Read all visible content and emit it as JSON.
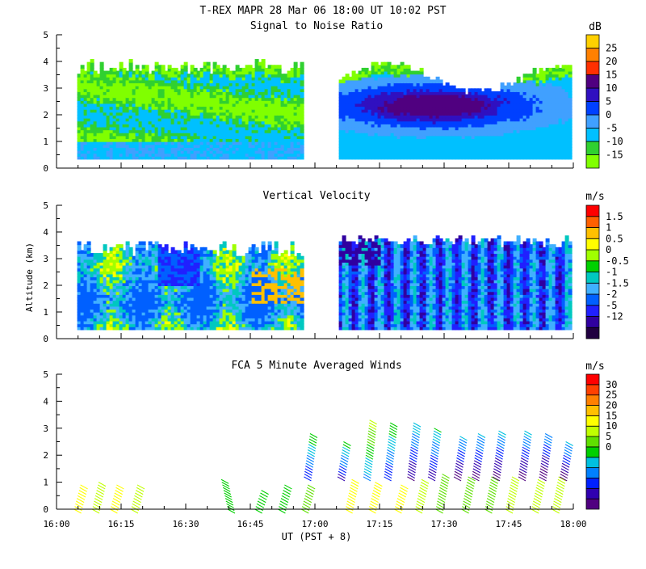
{
  "figure": {
    "title": "T-REX   MAPR 28 Mar 06   18:00 UT   10:02   PST",
    "xlabel": "UT  (PST + 8)",
    "x_ticks": [
      "16:00",
      "16:15",
      "16:30",
      "16:45",
      "17:00",
      "17:15",
      "17:30",
      "17:45",
      "18:00"
    ]
  },
  "colors": {
    "snr": [
      "#80ff00",
      "#30d030",
      "#00c0ff",
      "#40a0ff",
      "#0040ff",
      "#3010c0",
      "#500080",
      "#ff3000",
      "#ff8000",
      "#ffd000"
    ],
    "vel": [
      "#200040",
      "#3000a0",
      "#2020ff",
      "#0060ff",
      "#40b0ff",
      "#00c8c0",
      "#00d000",
      "#a0ff00",
      "#ffff00",
      "#ffc000",
      "#ff6000",
      "#ff0000"
    ],
    "wind": [
      "#500080",
      "#3000b0",
      "#0020ff",
      "#0080ff",
      "#00c0e0",
      "#00d000",
      "#60e000",
      "#c0ff00",
      "#ffff00",
      "#ffc000",
      "#ff8000",
      "#ff4000",
      "#ff0000"
    ]
  },
  "chart_data": [
    {
      "type": "heatmap",
      "title": "Signal to Noise Ratio",
      "xlabel": "UT  (PST + 8)",
      "ylabel": "",
      "y_ticks": [
        "0",
        "1",
        "2",
        "3",
        "4",
        "5"
      ],
      "ylim": [
        0,
        5
      ],
      "x_range_hours": [
        16,
        18
      ],
      "data_gap_hours": [
        16.95,
        17.08
      ],
      "colorbar_unit": "dB",
      "colorbar_labels": [
        "25",
        "20",
        "15",
        "10",
        "5",
        "0",
        "-5",
        "-10",
        "-15"
      ],
      "colorbar_range": [
        -15,
        30
      ]
    },
    {
      "type": "heatmap",
      "title": "Vertical Velocity",
      "xlabel": "UT  (PST + 8)",
      "ylabel": "Altitude (km)",
      "y_ticks": [
        "0",
        "1",
        "2",
        "3",
        "4",
        "5"
      ],
      "ylim": [
        0,
        5
      ],
      "x_range_hours": [
        16,
        18
      ],
      "data_gap_hours": [
        16.95,
        17.08
      ],
      "colorbar_unit": "m/s",
      "colorbar_labels": [
        "1.5",
        "1",
        "0.5",
        "0",
        "-0.5",
        "-1",
        "-1.5",
        "-2",
        "-5",
        "-12"
      ]
    },
    {
      "type": "scatter",
      "title": "FCA 5 Minute Averaged Winds",
      "xlabel": "UT  (PST + 8)",
      "ylabel": "",
      "y_ticks": [
        "0",
        "1",
        "2",
        "3",
        "4",
        "5"
      ],
      "ylim": [
        0,
        5
      ],
      "x_range_hours": [
        16,
        18
      ],
      "colorbar_unit": "m/s",
      "colorbar_labels": [
        "30",
        "25",
        "20",
        "15",
        "10",
        "5",
        "0"
      ],
      "colorbar_range": [
        0,
        32
      ],
      "profiles": [
        {
          "t": 16.08,
          "top": 0.9,
          "speed": 20,
          "lean": 1
        },
        {
          "t": 16.15,
          "top": 1.0,
          "speed": 19,
          "lean": 1
        },
        {
          "t": 16.22,
          "top": 0.9,
          "speed": 20,
          "lean": 1
        },
        {
          "t": 16.3,
          "top": 0.9,
          "speed": 18,
          "lean": 1
        },
        {
          "t": 16.65,
          "top": 1.1,
          "speed": 14,
          "lean": -1
        },
        {
          "t": 16.78,
          "top": 0.7,
          "speed": 14,
          "lean": 1
        },
        {
          "t": 16.87,
          "top": 0.9,
          "speed": 13,
          "lean": 1
        },
        {
          "t": 16.96,
          "top": 0.9,
          "speed": 16,
          "lean": 1
        },
        {
          "t": 16.97,
          "top": 2.9,
          "speed": 10,
          "lean": 1
        },
        {
          "t": 17.1,
          "top": 2.6,
          "speed": 9,
          "lean": 1
        },
        {
          "t": 17.13,
          "top": 1.1,
          "speed": 20,
          "lean": 1
        },
        {
          "t": 17.2,
          "top": 3.4,
          "speed": 14,
          "lean": 1
        },
        {
          "t": 17.22,
          "top": 1.0,
          "speed": 21,
          "lean": 1
        },
        {
          "t": 17.28,
          "top": 3.3,
          "speed": 10,
          "lean": 1
        },
        {
          "t": 17.32,
          "top": 0.9,
          "speed": 20,
          "lean": 1
        },
        {
          "t": 17.37,
          "top": 3.3,
          "speed": 7,
          "lean": 1
        },
        {
          "t": 17.4,
          "top": 1.1,
          "speed": 19,
          "lean": 1
        },
        {
          "t": 17.45,
          "top": 3.1,
          "speed": 8,
          "lean": 1
        },
        {
          "t": 17.48,
          "top": 1.3,
          "speed": 15,
          "lean": 1
        },
        {
          "t": 17.55,
          "top": 2.8,
          "speed": 6,
          "lean": 1
        },
        {
          "t": 17.58,
          "top": 1.2,
          "speed": 15,
          "lean": 1
        },
        {
          "t": 17.62,
          "top": 2.9,
          "speed": 6,
          "lean": 1
        },
        {
          "t": 17.67,
          "top": 1.2,
          "speed": 16,
          "lean": 1
        },
        {
          "t": 17.7,
          "top": 3.0,
          "speed": 6,
          "lean": 1
        },
        {
          "t": 17.75,
          "top": 1.2,
          "speed": 18,
          "lean": 1
        },
        {
          "t": 17.8,
          "top": 3.0,
          "speed": 6,
          "lean": 1
        },
        {
          "t": 17.85,
          "top": 1.1,
          "speed": 18,
          "lean": 1
        },
        {
          "t": 17.88,
          "top": 2.9,
          "speed": 5,
          "lean": 1
        },
        {
          "t": 17.93,
          "top": 1.2,
          "speed": 18,
          "lean": 1
        },
        {
          "t": 17.96,
          "top": 2.6,
          "speed": 6,
          "lean": 1
        }
      ]
    }
  ]
}
